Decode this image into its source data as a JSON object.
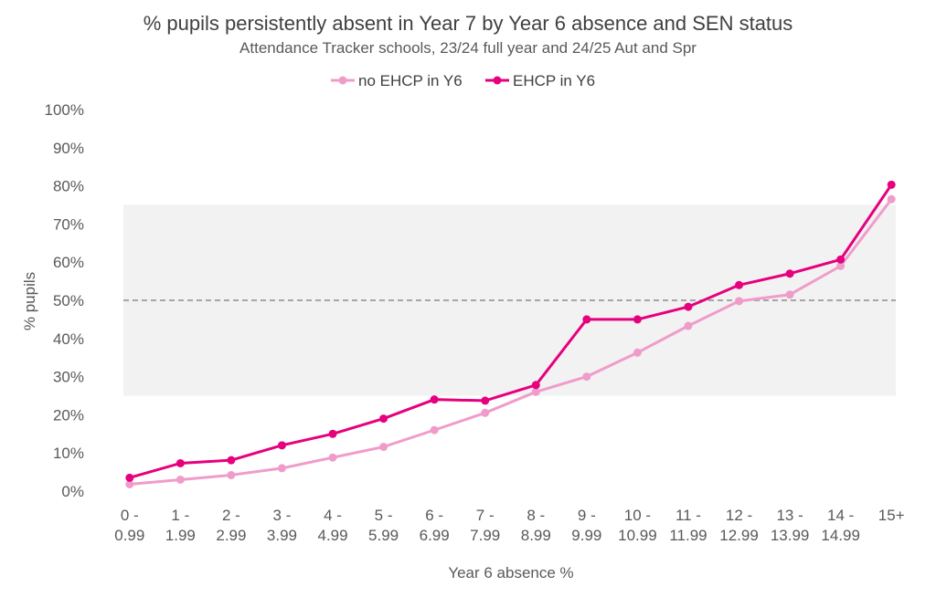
{
  "chart_data": {
    "type": "line",
    "title": "% pupils persistently absent in Year 7 by Year 6 absence and SEN status",
    "subtitle": "Attendance Tracker schools, 23/24 full year and 24/25 Aut and Spr",
    "xlabel": "Year 6 absence %",
    "ylabel": "% pupils",
    "categories": [
      [
        "0 -",
        "0.99"
      ],
      [
        "1 -",
        "1.99"
      ],
      [
        "2 -",
        "2.99"
      ],
      [
        "3 -",
        "3.99"
      ],
      [
        "4 -",
        "4.99"
      ],
      [
        "5 -",
        "5.99"
      ],
      [
        "6 -",
        "6.99"
      ],
      [
        "7 -",
        "7.99"
      ],
      [
        "8 -",
        "8.99"
      ],
      [
        "9 -",
        "9.99"
      ],
      [
        "10 -",
        "10.99"
      ],
      [
        "11 -",
        "11.99"
      ],
      [
        "12 -",
        "12.99"
      ],
      [
        "13 -",
        "13.99"
      ],
      [
        "14 -",
        "14.99"
      ],
      [
        "15+",
        ""
      ]
    ],
    "ylim": [
      0,
      100
    ],
    "yticks": [
      0,
      10,
      20,
      30,
      40,
      50,
      60,
      70,
      80,
      90,
      100
    ],
    "ytick_labels": [
      "0%",
      "10%",
      "20%",
      "30%",
      "40%",
      "50%",
      "60%",
      "70%",
      "80%",
      "90%",
      "100%"
    ],
    "grid": false,
    "legend_position": "top-center",
    "shaded_band": [
      25,
      75
    ],
    "reference_line": 50,
    "series": [
      {
        "name": "no EHCP in Y6",
        "color": "#f09ccb",
        "values": [
          1.8,
          3.0,
          4.2,
          6.0,
          8.8,
          11.6,
          16.0,
          20.5,
          26.0,
          30.0,
          36.3,
          43.3,
          49.8,
          51.5,
          59.0,
          76.5
        ]
      },
      {
        "name": "EHCP in Y6",
        "color": "#e6007e",
        "values": [
          3.5,
          7.3,
          8.1,
          12.0,
          15.0,
          19.0,
          24.0,
          23.7,
          27.8,
          45.0,
          45.0,
          48.3,
          54.0,
          57.0,
          60.7,
          80.3
        ]
      }
    ],
    "colors": {
      "band": "#f2f2f2",
      "reference": "#a6a6a6",
      "text": "#595959"
    }
  }
}
